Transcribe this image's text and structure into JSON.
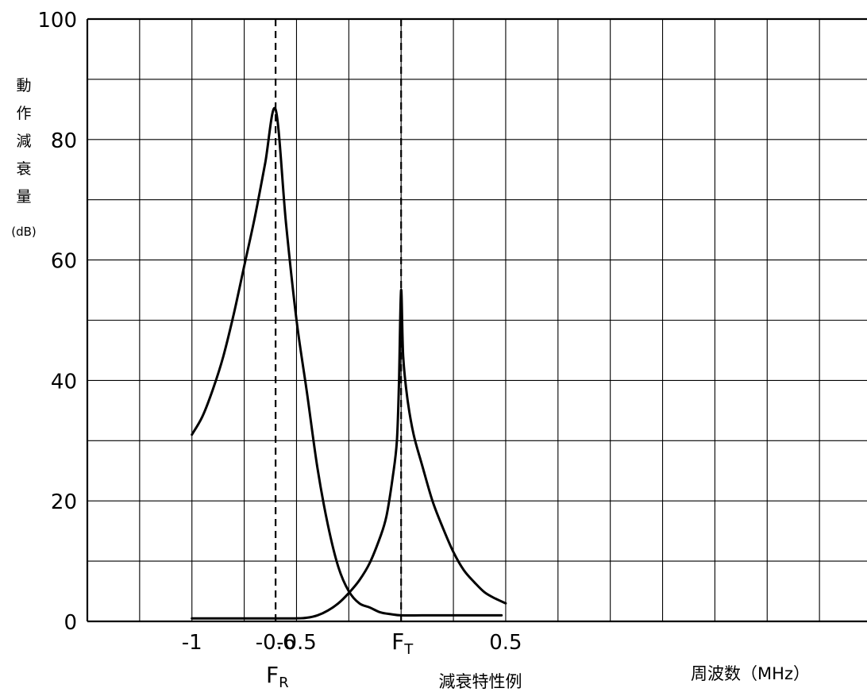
{
  "chart_data": {
    "type": "line",
    "title": "",
    "caption": "減衰特性例",
    "ylabel": [
      "動",
      "作",
      "減",
      "衰",
      "量"
    ],
    "yunit": "(dB)",
    "xlabel": "周波数（MHz）",
    "ylim": [
      0,
      100
    ],
    "yticks": [
      0,
      20,
      40,
      60,
      80,
      100
    ],
    "xlim": [
      -1.5,
      2.25
    ],
    "xticks": [
      {
        "value": -1,
        "label": "-1"
      },
      {
        "value": -0.6,
        "label": "-0.6"
      },
      {
        "value": -0.5,
        "label": "-0.5"
      },
      {
        "value": 0.5,
        "label": "0.5"
      }
    ],
    "grid": true,
    "markers": [
      {
        "x": -0.6,
        "main": "F",
        "sub": "R"
      },
      {
        "x": 0,
        "main": "F",
        "sub": "T"
      }
    ],
    "series": [
      {
        "points": [
          [
            -1.0,
            31
          ],
          [
            -0.95,
            34
          ],
          [
            -0.9,
            38.5
          ],
          [
            -0.85,
            44
          ],
          [
            -0.8,
            51
          ],
          [
            -0.75,
            59
          ],
          [
            -0.7,
            67
          ],
          [
            -0.65,
            76
          ],
          [
            -0.6,
            85
          ],
          [
            -0.55,
            66
          ],
          [
            -0.5,
            50
          ],
          [
            -0.45,
            38
          ],
          [
            -0.4,
            25.5
          ],
          [
            -0.35,
            16
          ],
          [
            -0.3,
            9
          ],
          [
            -0.25,
            5
          ],
          [
            -0.2,
            3
          ],
          [
            -0.15,
            2.3
          ],
          [
            -0.1,
            1.5
          ],
          [
            -0.05,
            1.2
          ],
          [
            0.0,
            1
          ],
          [
            0.1,
            1
          ],
          [
            0.2,
            1
          ],
          [
            0.3,
            1
          ],
          [
            0.4,
            1
          ],
          [
            0.48,
            1
          ]
        ]
      },
      {
        "points": [
          [
            -1.0,
            0.5
          ],
          [
            -0.8,
            0.5
          ],
          [
            -0.6,
            0.5
          ],
          [
            -0.5,
            0.5
          ],
          [
            -0.45,
            0.6
          ],
          [
            -0.4,
            1
          ],
          [
            -0.35,
            1.8
          ],
          [
            -0.3,
            3
          ],
          [
            -0.25,
            4.7
          ],
          [
            -0.2,
            6.8
          ],
          [
            -0.15,
            9.7
          ],
          [
            -0.1,
            14
          ],
          [
            -0.07,
            17.5
          ],
          [
            -0.04,
            24
          ],
          [
            -0.02,
            30
          ],
          [
            -0.01,
            40
          ],
          [
            0.0,
            55
          ],
          [
            0.01,
            44
          ],
          [
            0.03,
            37
          ],
          [
            0.06,
            31
          ],
          [
            0.1,
            26
          ],
          [
            0.15,
            20
          ],
          [
            0.2,
            15.5
          ],
          [
            0.25,
            11.5
          ],
          [
            0.3,
            8.5
          ],
          [
            0.35,
            6.5
          ],
          [
            0.4,
            4.8
          ],
          [
            0.45,
            3.8
          ],
          [
            0.5,
            3
          ]
        ]
      }
    ]
  }
}
